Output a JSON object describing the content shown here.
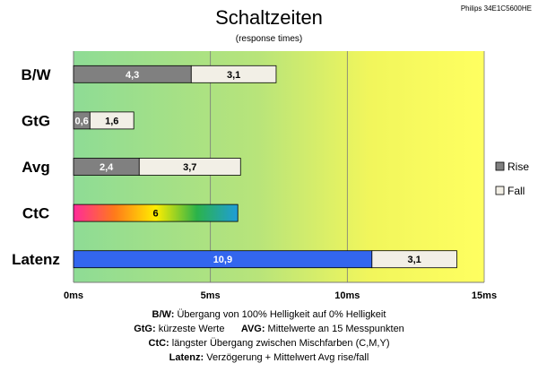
{
  "chart_data": {
    "type": "bar",
    "orientation": "horizontal",
    "stacked": true,
    "title": "Schaltzeiten",
    "subtitle": "(response times)",
    "corner_label": "Philips 34E1C5600HE",
    "categories": [
      "B/W",
      "GtG",
      "Avg",
      "CtC",
      "Latenz"
    ],
    "series": [
      {
        "name": "Rise",
        "color": "#808080",
        "values": [
          4.3,
          0.6,
          2.4,
          null,
          10.9
        ],
        "labels": [
          "4,3",
          "0,6",
          "2,4",
          "",
          "10,9"
        ]
      },
      {
        "name": "Fall",
        "color": "#f2efe6",
        "values": [
          3.1,
          1.6,
          3.7,
          null,
          3.1
        ],
        "labels": [
          "3,1",
          "1,6",
          "3,7",
          "",
          "3,1"
        ]
      },
      {
        "name": "",
        "color": "gradient",
        "values": [
          null,
          null,
          null,
          6,
          null
        ],
        "labels": [
          "",
          "",
          "",
          "6",
          ""
        ]
      }
    ],
    "latenz_rise_color": "#3366ee",
    "ctc_gradient": [
      "#ff2a9a",
      "#ff7a1a",
      "#ffee00",
      "#2bb34a",
      "#1f9dd8"
    ],
    "xaxis": {
      "ticks": [
        0,
        5,
        10,
        15
      ],
      "tick_labels": [
        "0ms",
        "5ms",
        "10ms",
        "15ms"
      ],
      "range": [
        0,
        15
      ]
    },
    "background_gradient": [
      "#8edc95",
      "#b8e47a",
      "#f1f65c",
      "#ffff60"
    ],
    "legend": {
      "placement": "right",
      "items": [
        "Rise",
        "Fall"
      ]
    }
  },
  "notes": [
    {
      "label": "B/W:",
      "text": " Übergang von 100% Helligkeit auf 0% Helligkeit"
    },
    {
      "label": "GtG:",
      "text": " kürzeste Werte      ",
      "label2": "AVG:",
      "text2": " Mittelwerte an 15 Messpunkten"
    },
    {
      "label": "CtC:",
      "text": " längster Übergang zwischen Mischfarben (C,M,Y)"
    },
    {
      "label": "Latenz:",
      "text": " Verzögerung + Mittelwert Avg rise/fall"
    }
  ]
}
